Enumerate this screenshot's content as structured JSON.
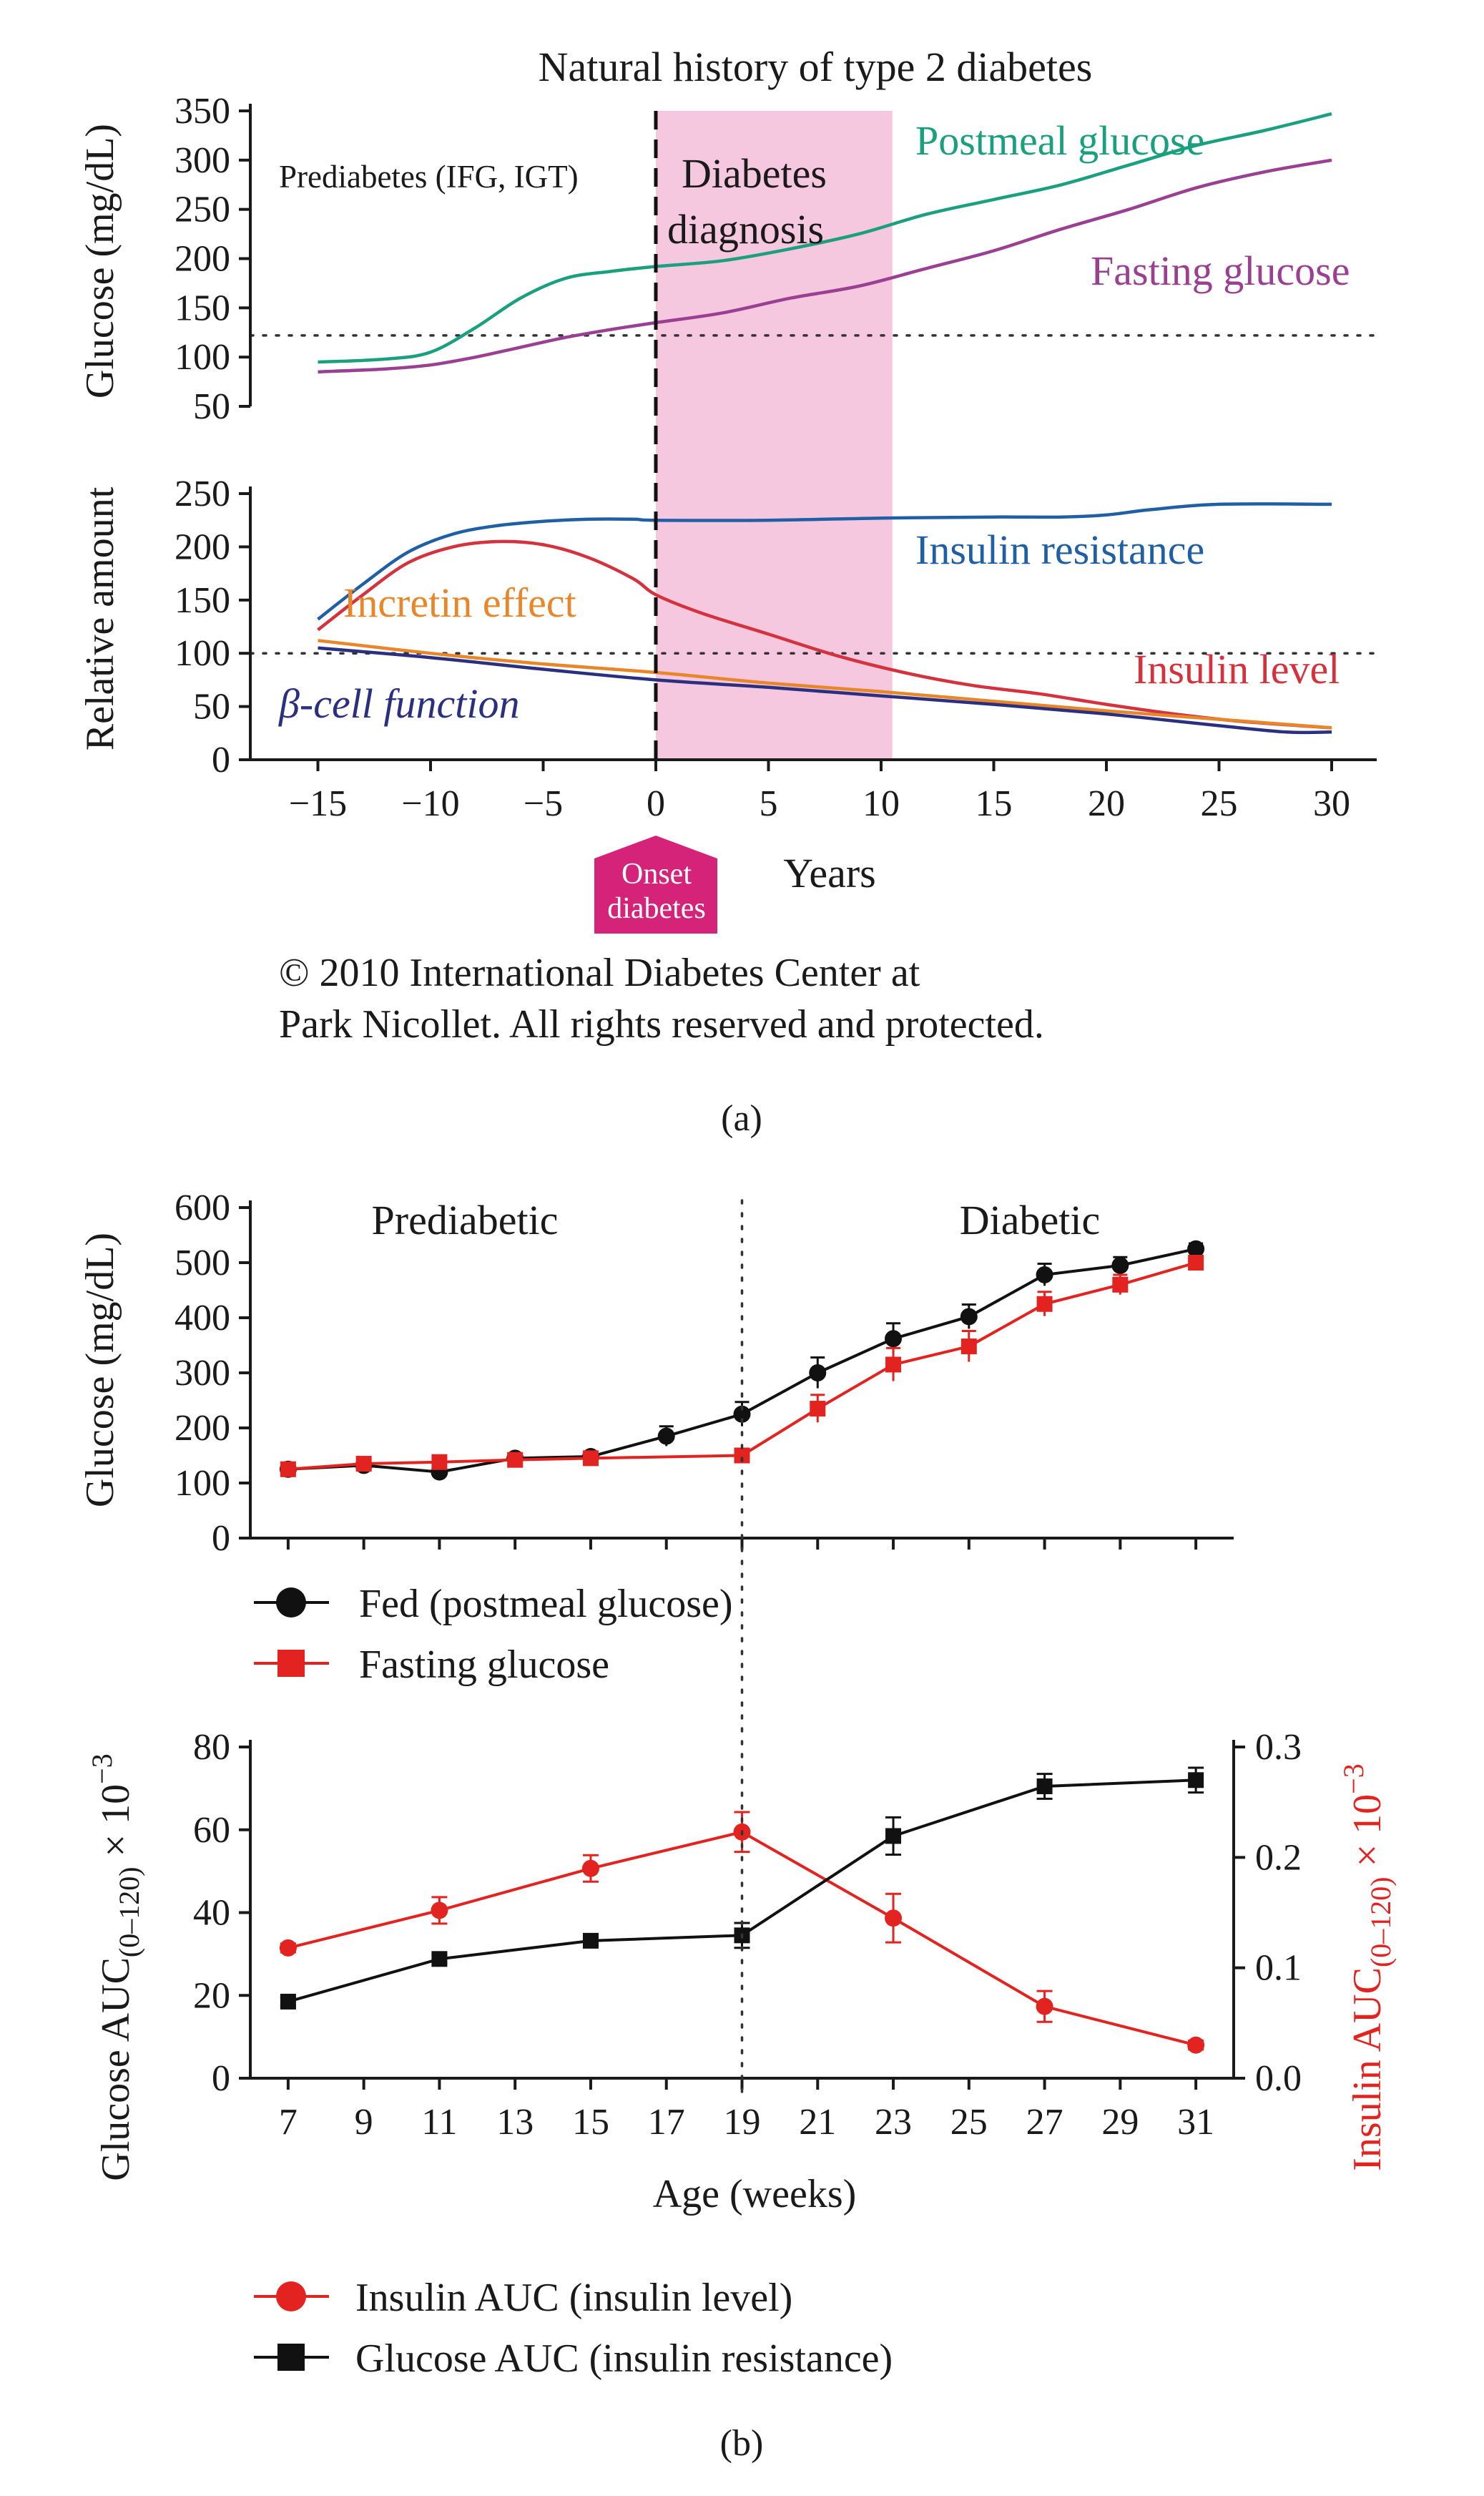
{
  "panel_a_label": "(a)",
  "panel_b_label": "(b)",
  "chart_data": [
    {
      "id": "a_top",
      "type": "line",
      "title": "Natural history of type 2 diabetes",
      "ylabel": "Glucose (mg/dL)",
      "xlim": [
        -18,
        32
      ],
      "ylim": [
        50,
        350
      ],
      "yticks": [
        "50",
        "100",
        "150",
        "200",
        "250",
        "300",
        "350"
      ],
      "reference_line_y": 122,
      "annotations": [
        "Prediabetes (IFG, IGT)",
        "Diabetes",
        "diagnosis"
      ],
      "shaded_region": {
        "x": [
          0,
          10.5
        ],
        "color": "#f5c8df"
      },
      "diagnosis_line_x": 0,
      "series": [
        {
          "name": "Postmeal glucose",
          "color": "#1aa07f",
          "x": [
            -15,
            -12,
            -10,
            -8,
            -6,
            -4,
            -2,
            0,
            3,
            6,
            9,
            12,
            15,
            18,
            21,
            24,
            27,
            30
          ],
          "y": [
            95,
            98,
            105,
            130,
            160,
            180,
            187,
            192,
            198,
            210,
            225,
            245,
            260,
            275,
            295,
            315,
            330,
            347
          ]
        },
        {
          "name": "Fasting glucose",
          "color": "#9a3f92",
          "x": [
            -15,
            -12,
            -10,
            -8,
            -6,
            -4,
            -2,
            0,
            3,
            6,
            9,
            12,
            15,
            18,
            21,
            24,
            27,
            30
          ],
          "y": [
            85,
            88,
            92,
            100,
            110,
            120,
            128,
            135,
            145,
            160,
            172,
            190,
            208,
            230,
            250,
            272,
            288,
            300
          ]
        }
      ]
    },
    {
      "id": "a_bottom",
      "type": "line",
      "ylabel": "Relative amount",
      "xlabel": "Years",
      "xlim": [
        -18,
        32
      ],
      "ylim": [
        0,
        250
      ],
      "xticks": [
        "−15",
        "−10",
        "−5",
        "0",
        "5",
        "10",
        "15",
        "20",
        "25",
        "30"
      ],
      "xtick_values": [
        -15,
        -10,
        -5,
        0,
        5,
        10,
        15,
        20,
        25,
        30
      ],
      "yticks": [
        "0",
        "50",
        "100",
        "150",
        "200",
        "250"
      ],
      "reference_line_y": 100,
      "onset_marker": {
        "x": 0,
        "line1": "Onset",
        "line2": "diabetes",
        "color": "#d6237a"
      },
      "series": [
        {
          "name": "Insulin resistance",
          "color": "#1f5fa6",
          "x": [
            -15,
            -13,
            -11,
            -9,
            -7,
            -5,
            -3,
            -1,
            0,
            5,
            10,
            15,
            18,
            20,
            22,
            25,
            30
          ],
          "y": [
            132,
            165,
            195,
            212,
            220,
            224,
            226,
            226,
            225,
            225,
            227,
            228,
            228,
            230,
            235,
            240,
            240
          ]
        },
        {
          "name": "Insulin level",
          "color": "#d4323c",
          "x": [
            -15,
            -13,
            -11,
            -9,
            -7,
            -5,
            -3,
            -1,
            0,
            2,
            5,
            8,
            11,
            14,
            17,
            20,
            23,
            26,
            30
          ],
          "y": [
            122,
            155,
            185,
            200,
            205,
            202,
            190,
            170,
            155,
            138,
            118,
            98,
            82,
            70,
            62,
            52,
            43,
            36,
            30
          ]
        },
        {
          "name": "Incretin effect",
          "color": "#e8862a",
          "x": [
            -15,
            -10,
            -5,
            0,
            5,
            10,
            15,
            20,
            25,
            30
          ],
          "y": [
            112,
            100,
            90,
            82,
            72,
            64,
            55,
            46,
            38,
            30
          ]
        },
        {
          "name": "β-cell function",
          "color": "#2a2f7f",
          "x": [
            -15,
            -10,
            -5,
            0,
            5,
            10,
            15,
            20,
            25,
            28,
            30
          ],
          "y": [
            105,
            96,
            85,
            75,
            68,
            60,
            52,
            43,
            32,
            26,
            26
          ]
        }
      ]
    },
    {
      "id": "b_top",
      "type": "line",
      "ylabel": "Glucose (mg/dL)",
      "xlim": [
        6,
        32
      ],
      "ylim": [
        0,
        600
      ],
      "yticks": [
        "0",
        "100",
        "200",
        "300",
        "400",
        "500",
        "600"
      ],
      "annotations": [
        "Prediabetic",
        "Diabetic"
      ],
      "divider_x": 19,
      "series": [
        {
          "name": "Fed (postmeal glucose)",
          "color": "#111111",
          "marker": "circle",
          "x": [
            7,
            9,
            11,
            13,
            15,
            17,
            19,
            21,
            23,
            25,
            27,
            29,
            31
          ],
          "y": [
            125,
            132,
            120,
            145,
            148,
            185,
            225,
            300,
            362,
            402,
            478,
            495,
            525
          ],
          "err": [
            8,
            8,
            6,
            8,
            8,
            18,
            22,
            28,
            28,
            22,
            20,
            15,
            10
          ]
        },
        {
          "name": "Fasting glucose",
          "color": "#e3231f",
          "marker": "square",
          "x": [
            7,
            9,
            11,
            13,
            15,
            19,
            21,
            23,
            25,
            27,
            29,
            31
          ],
          "y": [
            125,
            135,
            138,
            142,
            145,
            150,
            235,
            315,
            348,
            425,
            460,
            500
          ],
          "err": [
            6,
            6,
            6,
            6,
            6,
            8,
            25,
            30,
            28,
            22,
            18,
            10
          ]
        }
      ]
    },
    {
      "id": "b_bottom",
      "type": "line",
      "xlabel": "Age (weeks)",
      "ylabel_left": "Glucose AUC",
      "ylabel_left_sub": "(0–120)",
      "ylabel_left_mult": " × 10",
      "ylabel_left_exp": "−3",
      "ylabel_right": "Insulin AUC",
      "ylabel_right_sub": "(0–120)",
      "ylabel_right_mult": " × 10",
      "ylabel_right_exp": "−3",
      "xlim": [
        6,
        32
      ],
      "xticks": [
        "7",
        "9",
        "11",
        "13",
        "15",
        "17",
        "19",
        "21",
        "23",
        "25",
        "27",
        "29",
        "31"
      ],
      "xtick_values": [
        7,
        9,
        11,
        13,
        15,
        17,
        19,
        21,
        23,
        25,
        27,
        29,
        31
      ],
      "ylim_left": [
        0,
        80
      ],
      "yticks_left": [
        "0",
        "20",
        "40",
        "60",
        "80"
      ],
      "ylim_right": [
        0,
        0.3
      ],
      "yticks_right": [
        "0.0",
        "0.1",
        "0.2",
        "0.3"
      ],
      "divider_x": 19,
      "series": [
        {
          "name": "Insulin AUC (insulin level)",
          "color": "#e3231f",
          "marker": "circle",
          "axis": "right",
          "x": [
            7,
            11,
            15,
            19,
            23,
            27,
            31
          ],
          "y": [
            0.118,
            0.152,
            0.19,
            0.223,
            0.145,
            0.065,
            0.03
          ],
          "err": [
            0.004,
            0.012,
            0.012,
            0.018,
            0.022,
            0.014,
            0.004
          ]
        },
        {
          "name": "Glucose AUC (insulin resistance)",
          "color": "#111111",
          "marker": "square",
          "axis": "left",
          "x": [
            7,
            11,
            15,
            19,
            23,
            27,
            31
          ],
          "y": [
            18.5,
            28.8,
            33.2,
            34.5,
            58.5,
            70.5,
            72
          ],
          "err": [
            1,
            1,
            1,
            3,
            4.5,
            3,
            3
          ]
        }
      ]
    }
  ],
  "copyright_line1": "© 2010 International Diabetes Center at",
  "copyright_line2": "Park Nicollet. All rights reserved and protected."
}
